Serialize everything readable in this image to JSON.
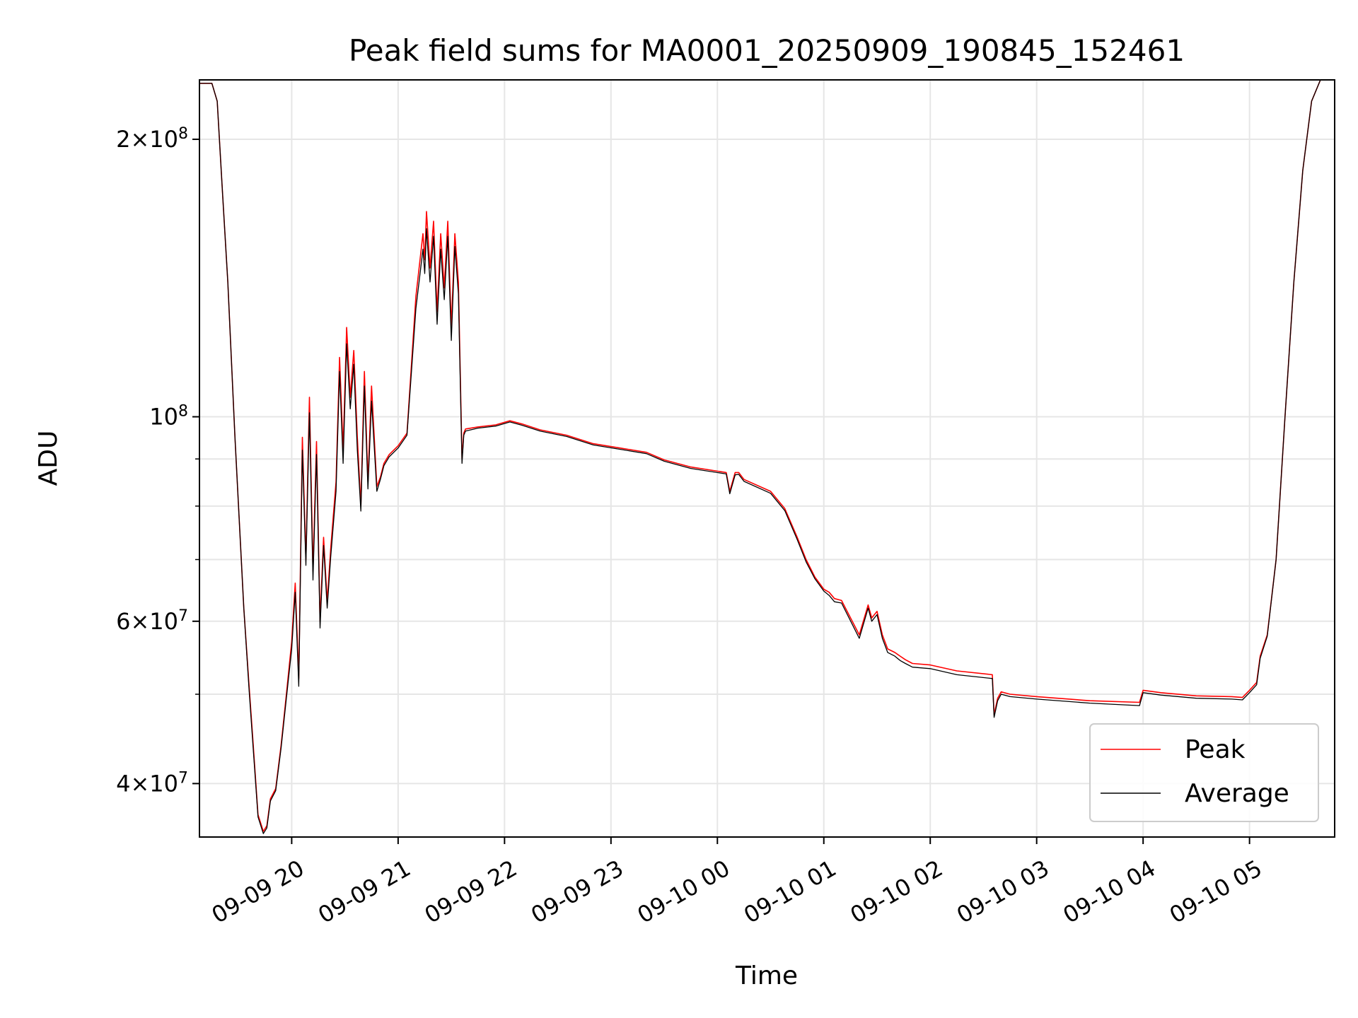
{
  "chart_data": {
    "type": "line",
    "title": "Peak field sums for MA0001_20250909_190845_152461",
    "xlabel": "Time",
    "ylabel": "ADU",
    "y_scale": "log",
    "xlim": [
      "2025-09-09 19:08",
      "2025-09-10 05:48"
    ],
    "ylim": [
      35000000,
      232000000
    ],
    "grid": true,
    "legend_position": "lower-right",
    "x_ticks": [
      "09-09 20",
      "09-09 21",
      "09-09 22",
      "09-09 23",
      "09-10 00",
      "09-10 01",
      "09-10 02",
      "09-10 03",
      "09-10 04",
      "09-10 05"
    ],
    "y_ticks": [
      {
        "base": "4",
        "exp": "7"
      },
      {
        "base": "6",
        "exp": "7"
      },
      {
        "base": "",
        "exp": "8"
      },
      {
        "base": "2",
        "exp": "8"
      }
    ],
    "x": [
      "2025-09-09 19:08",
      "2025-09-09 19:12",
      "2025-09-09 19:15",
      "2025-09-09 19:18",
      "2025-09-09 19:21",
      "2025-09-09 19:24",
      "2025-09-09 19:28",
      "2025-09-09 19:33",
      "2025-09-09 19:36",
      "2025-09-09 19:38",
      "2025-09-09 19:41",
      "2025-09-09 19:44",
      "2025-09-09 19:46",
      "2025-09-09 19:48",
      "2025-09-09 19:51",
      "2025-09-09 19:54",
      "2025-09-09 19:57",
      "2025-09-09 20:00",
      "2025-09-09 20:02",
      "2025-09-09 20:04",
      "2025-09-09 20:06",
      "2025-09-09 20:08",
      "2025-09-09 20:10",
      "2025-09-09 20:12",
      "2025-09-09 20:14",
      "2025-09-09 20:16",
      "2025-09-09 20:18",
      "2025-09-09 20:20",
      "2025-09-09 20:22",
      "2025-09-09 20:25",
      "2025-09-09 20:27",
      "2025-09-09 20:29",
      "2025-09-09 20:31",
      "2025-09-09 20:33",
      "2025-09-09 20:35",
      "2025-09-09 20:37",
      "2025-09-09 20:39",
      "2025-09-09 20:41",
      "2025-09-09 20:43",
      "2025-09-09 20:45",
      "2025-09-09 20:48",
      "2025-09-09 20:50",
      "2025-09-09 20:52",
      "2025-09-09 20:55",
      "2025-09-09 21:00",
      "2025-09-09 21:05",
      "2025-09-09 21:10",
      "2025-09-09 21:14",
      "2025-09-09 21:15",
      "2025-09-09 21:16",
      "2025-09-09 21:18",
      "2025-09-09 21:20",
      "2025-09-09 21:22",
      "2025-09-09 21:24",
      "2025-09-09 21:26",
      "2025-09-09 21:28",
      "2025-09-09 21:30",
      "2025-09-09 21:32",
      "2025-09-09 21:34",
      "2025-09-09 21:36",
      "2025-09-09 21:37",
      "2025-09-09 21:38",
      "2025-09-09 21:45",
      "2025-09-09 21:55",
      "2025-09-09 22:03",
      "2025-09-09 22:10",
      "2025-09-09 22:20",
      "2025-09-09 22:35",
      "2025-09-09 22:50",
      "2025-09-09 23:05",
      "2025-09-09 23:20",
      "2025-09-09 23:30",
      "2025-09-09 23:45",
      "2025-09-10 00:05",
      "2025-09-10 00:07",
      "2025-09-10 00:10",
      "2025-09-10 00:12",
      "2025-09-10 00:15",
      "2025-09-10 00:30",
      "2025-09-10 00:38",
      "2025-09-10 00:45",
      "2025-09-10 00:50",
      "2025-09-10 00:55",
      "2025-09-10 01:00",
      "2025-09-10 01:03",
      "2025-09-10 01:06",
      "2025-09-10 01:10",
      "2025-09-10 01:20",
      "2025-09-10 01:25",
      "2025-09-10 01:27",
      "2025-09-10 01:30",
      "2025-09-10 01:33",
      "2025-09-10 01:36",
      "2025-09-10 01:40",
      "2025-09-10 01:43",
      "2025-09-10 01:46",
      "2025-09-10 01:50",
      "2025-09-10 02:00",
      "2025-09-10 02:15",
      "2025-09-10 02:35",
      "2025-09-10 02:36",
      "2025-09-10 02:38",
      "2025-09-10 02:40",
      "2025-09-10 02:45",
      "2025-09-10 03:00",
      "2025-09-10 03:30",
      "2025-09-10 03:58",
      "2025-09-10 04:00",
      "2025-09-10 04:10",
      "2025-09-10 04:30",
      "2025-09-10 04:50",
      "2025-09-10 04:56",
      "2025-09-10 05:00",
      "2025-09-10 05:04",
      "2025-09-10 05:06",
      "2025-09-10 05:10",
      "2025-09-10 05:15",
      "2025-09-10 05:20",
      "2025-09-10 05:25",
      "2025-09-10 05:30",
      "2025-09-10 05:35",
      "2025-09-10 05:40",
      "2025-09-10 05:48"
    ],
    "series": [
      {
        "name": "Peak",
        "color": "#ff0000",
        "values": [
          230000000,
          230000000,
          230000000,
          220000000,
          175000000,
          140000000,
          95000000,
          62000000,
          51000000,
          45000000,
          37000000,
          35500000,
          36000000,
          38500000,
          39500000,
          44000000,
          50000000,
          57000000,
          66000000,
          52000000,
          95000000,
          70000000,
          105000000,
          68000000,
          94000000,
          60000000,
          74000000,
          63000000,
          72000000,
          85000000,
          116000000,
          92000000,
          125000000,
          105000000,
          118000000,
          95000000,
          80000000,
          112000000,
          85000000,
          108000000,
          84000000,
          86000000,
          89000000,
          91000000,
          93000000,
          96000000,
          135000000,
          158000000,
          148000000,
          167000000,
          145000000,
          163000000,
          130000000,
          158000000,
          138000000,
          163000000,
          125000000,
          158000000,
          140000000,
          90000000,
          96000000,
          97000000,
          97500000,
          98000000,
          99000000,
          98200000,
          96800000,
          95500000,
          93500000,
          92500000,
          91500000,
          89800000,
          88200000,
          87000000,
          83000000,
          87000000,
          87000000,
          85500000,
          83000000,
          79500000,
          74000000,
          70000000,
          67000000,
          65000000,
          64500000,
          63500000,
          63200000,
          58000000,
          62500000,
          60500000,
          61500000,
          58000000,
          56000000,
          55500000,
          55000000,
          54500000,
          54000000,
          53800000,
          53000000,
          52500000,
          47500000,
          49500000,
          50300000,
          50000000,
          49700000,
          49200000,
          49000000,
          50500000,
          50200000,
          49800000,
          49700000,
          49600000,
          50500000,
          51500000,
          55000000,
          58000000,
          70000000,
          100000000,
          140000000,
          185000000,
          220000000,
          232000000,
          232000000
        ]
      },
      {
        "name": "Average",
        "color": "#000000",
        "values": [
          230000000,
          230000000,
          230000000,
          220000000,
          175000000,
          140000000,
          95000000,
          62000000,
          50500000,
          44500000,
          36800000,
          35300000,
          35800000,
          38300000,
          39300000,
          43700000,
          49500000,
          56000000,
          64500000,
          51000000,
          92000000,
          69000000,
          101000000,
          66500000,
          91000000,
          59000000,
          72500000,
          62000000,
          70500000,
          83000000,
          112000000,
          89000000,
          120000000,
          102000000,
          114000000,
          92000000,
          79000000,
          108000000,
          83500000,
          104000000,
          83000000,
          85500000,
          88500000,
          90500000,
          92500000,
          95500000,
          131000000,
          152000000,
          143000000,
          160000000,
          140000000,
          157000000,
          126000000,
          152000000,
          134000000,
          157000000,
          121000000,
          153000000,
          136000000,
          89000000,
          95500000,
          96500000,
          97200000,
          97700000,
          98700000,
          97900000,
          96500000,
          95200000,
          93200000,
          92200000,
          91200000,
          89500000,
          87900000,
          86700000,
          82500000,
          86500000,
          86600000,
          85100000,
          82600000,
          79100000,
          73600000,
          69600000,
          66700000,
          64700000,
          64000000,
          63000000,
          62800000,
          57500000,
          62000000,
          60000000,
          61000000,
          57500000,
          55500000,
          55000000,
          54400000,
          54000000,
          53500000,
          53300000,
          52500000,
          52000000,
          47200000,
          49200000,
          50000000,
          49700000,
          49400000,
          48900000,
          48600000,
          50200000,
          49900000,
          49500000,
          49400000,
          49300000,
          50200000,
          51200000,
          54700000,
          57800000,
          70000000,
          100000000,
          140000000,
          185000000,
          220000000,
          232000000,
          232000000
        ]
      }
    ]
  }
}
